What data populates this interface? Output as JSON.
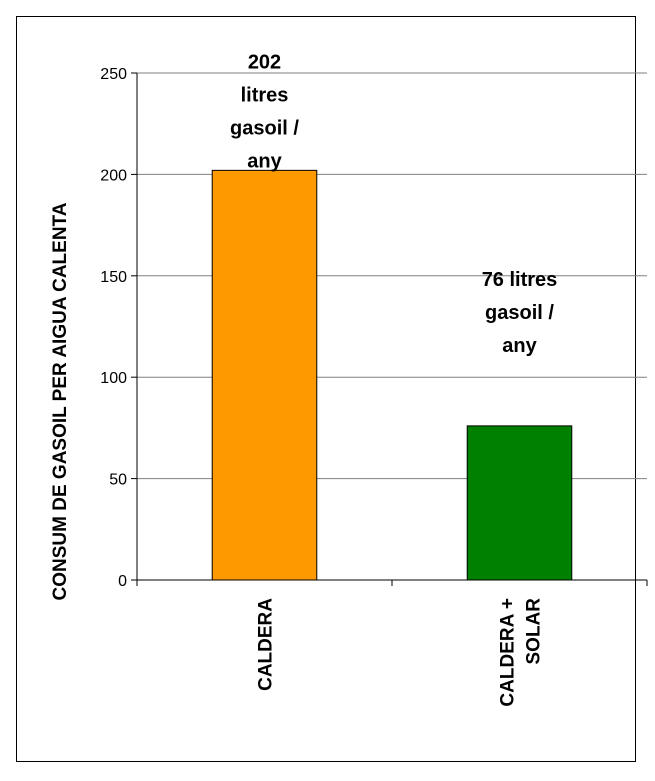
{
  "chart_data": {
    "type": "bar",
    "ylabel": "CONSUM DE GASOIL PER AIGUA CALENTA",
    "xlabel": "",
    "ylim": [
      0,
      250
    ],
    "yticks": [
      "0",
      "50",
      "100",
      "150",
      "200",
      "250"
    ],
    "grid": true,
    "categories": [
      {
        "lines": [
          "CALDERA"
        ]
      },
      {
        "lines": [
          "CALDERA +",
          "SOLAR"
        ]
      }
    ],
    "values": [
      202,
      76
    ],
    "data_labels": [
      {
        "lines": [
          "202",
          "litres",
          "gasoil /",
          "any"
        ]
      },
      {
        "lines": [
          "76 litres",
          "gasoil /",
          "any"
        ]
      }
    ],
    "colors": [
      "#FF9900",
      "#008000"
    ],
    "gridline_color": "#808080",
    "axis_color": "#000000"
  }
}
